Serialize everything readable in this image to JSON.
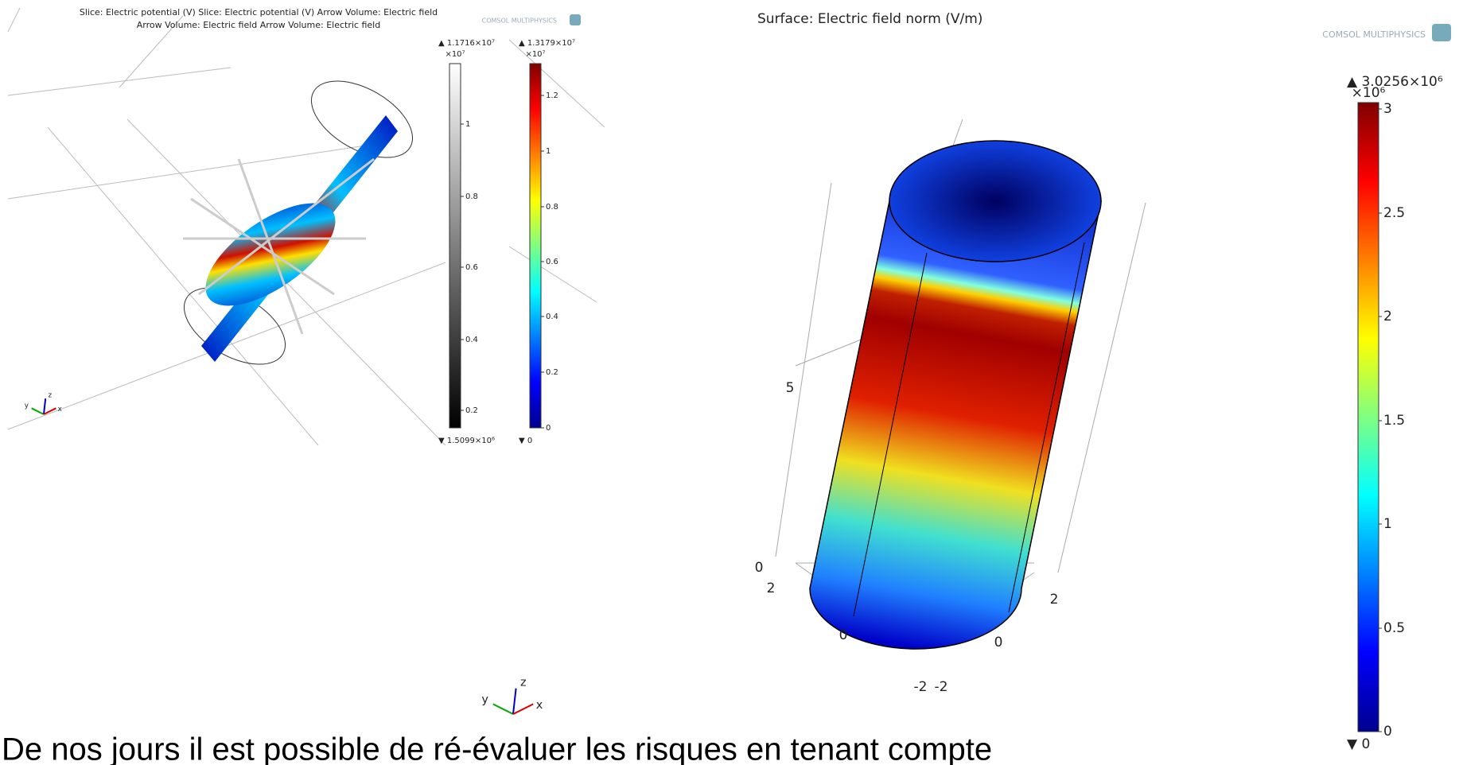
{
  "left_plot": {
    "title_lines": [
      "Slice: Electric potential (V)  Slice: Electric potential (V)  Arrow Volume: Electric field",
      "Arrow Volume: Electric field  Arrow Volume: Electric field"
    ],
    "logo": "COMSOL MULTIPHYSICS",
    "colorbars": [
      {
        "max_label": "▲ 1.1716×10⁷",
        "multiplier": "×10⁷",
        "ticks": [
          "1",
          "0.8",
          "0.6",
          "0.4",
          "0.2"
        ],
        "min_label": "▼ 1.5099×10⁶"
      },
      {
        "max_label": "▲ 1.3179×10⁷",
        "multiplier": "×10⁷",
        "ticks": [
          "1.2",
          "1",
          "0.8",
          "0.6",
          "0.4",
          "0.2",
          "0"
        ],
        "min_label": "▼ 0"
      }
    ],
    "triad": [
      "y",
      "z",
      "x"
    ]
  },
  "center_triad": [
    "y",
    "z",
    "x"
  ],
  "right_plot": {
    "title": "Surface: Electric field norm (V/m)",
    "logo": "COMSOL MULTIPHYSICS",
    "colorbar": {
      "max_label": "▲ 3.0256×10⁶",
      "multiplier": "×10⁶",
      "ticks": [
        "3",
        "2.5",
        "2",
        "1.5",
        "1",
        "0.5",
        "0"
      ],
      "min_label": "▼ 0"
    },
    "axis_labels": [
      "5",
      "0",
      "2",
      "0",
      "-2",
      "-2",
      "0",
      "2"
    ]
  },
  "caption": "De nos jours il est possible de ré-évaluer les risques en tenant compte"
}
